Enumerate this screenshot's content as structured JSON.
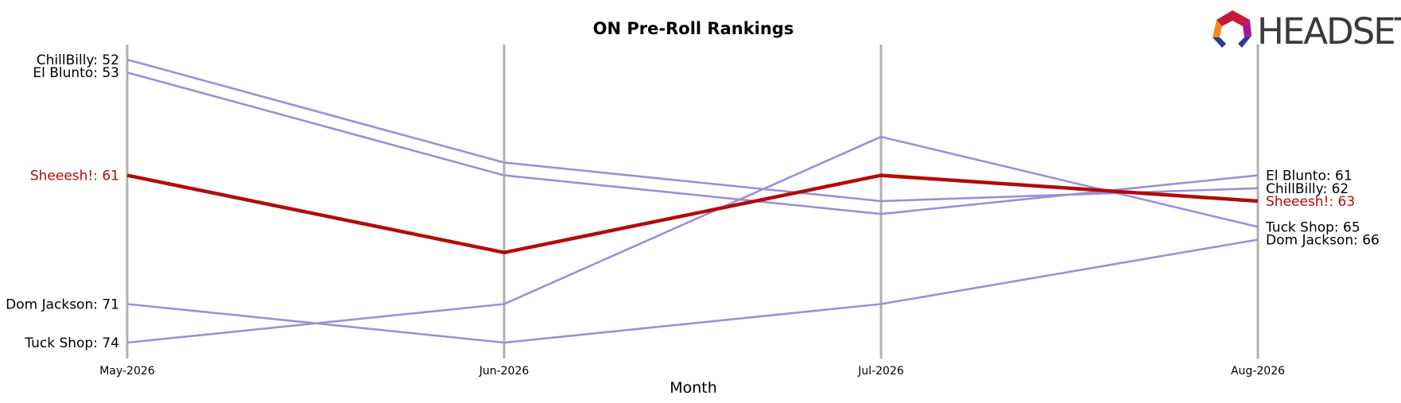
{
  "chart_data": {
    "type": "line",
    "title": "ON Pre-Roll Rankings",
    "xlabel": "Month",
    "ylabel": "",
    "x": [
      "May-2026",
      "Jun-2026",
      "Jul-2026",
      "Aug-2026"
    ],
    "y_inverted": true,
    "ylim": [
      51,
      75
    ],
    "grid": "vertical lines at each month",
    "highlight": "Sheeesh!",
    "series": [
      {
        "name": "ChillBilly",
        "values": [
          52,
          60,
          63,
          62
        ],
        "color": "#9b8fd8",
        "highlight": false
      },
      {
        "name": "El Blunto",
        "values": [
          53,
          61,
          64,
          61
        ],
        "color": "#9b8fd8",
        "highlight": false
      },
      {
        "name": "Sheeesh!",
        "values": [
          61,
          67,
          61,
          63
        ],
        "color": "#b30a0a",
        "highlight": true
      },
      {
        "name": "Dom Jackson",
        "values": [
          71,
          74,
          71,
          66
        ],
        "color": "#9b8fd8",
        "highlight": false
      },
      {
        "name": "Tuck Shop",
        "values": [
          74,
          71,
          58,
          65
        ],
        "color": "#9b8fd8",
        "highlight": false
      }
    ]
  },
  "logo": {
    "text": "HEADSET"
  },
  "colors": {
    "gridline": "#b0b0b0",
    "highlight": "#b30a0a",
    "series": "#9b8fd8",
    "text": "#000000"
  }
}
